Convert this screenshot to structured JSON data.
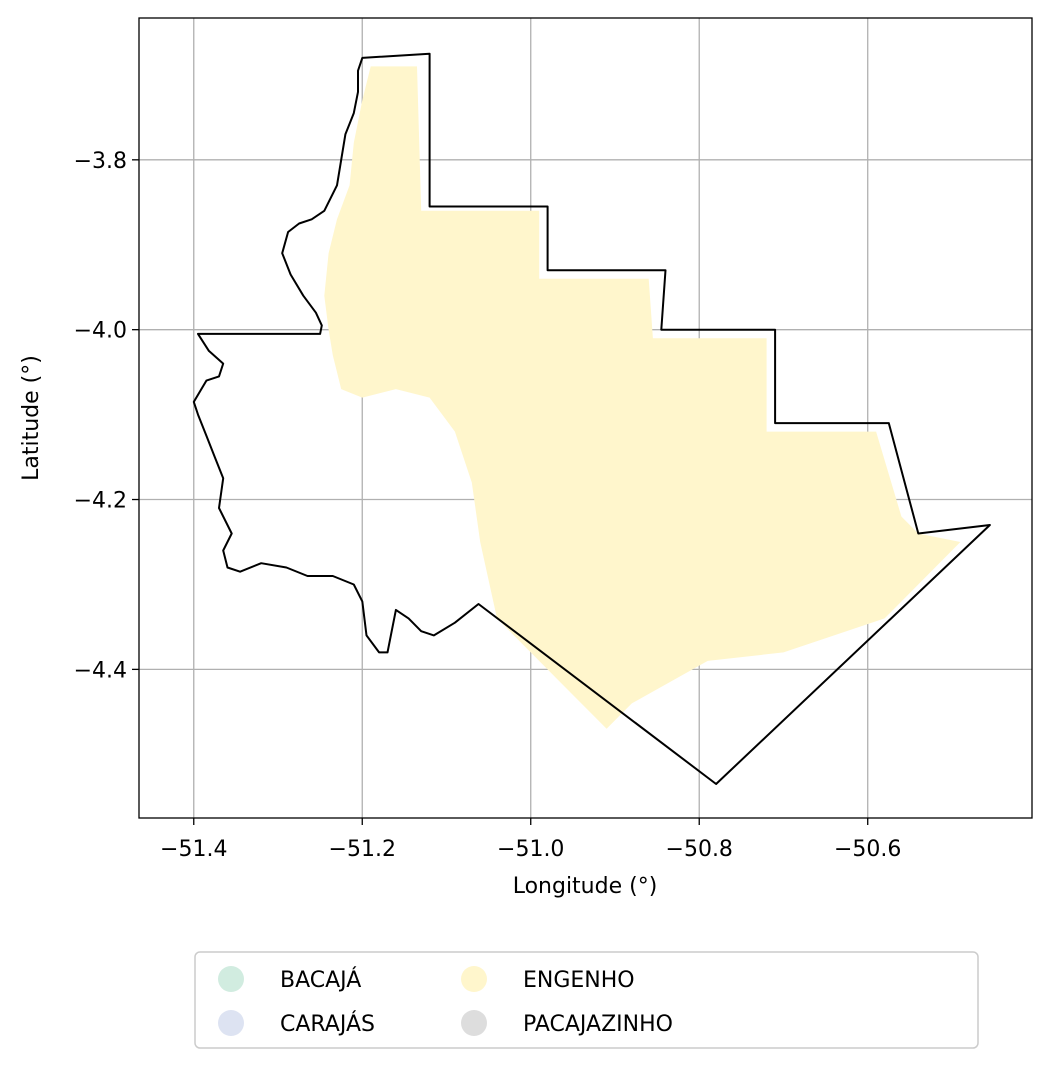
{
  "chart_data": {
    "type": "map",
    "xlabel": "Longitude (°)",
    "ylabel": "Latitude (°)",
    "xlim": [
      -51.465,
      -50.405
    ],
    "ylim": [
      -4.575,
      -3.633
    ],
    "grid": true,
    "x_ticks": [
      {
        "value": -51.4,
        "label": "−51.4"
      },
      {
        "value": -51.2,
        "label": "−51.2"
      },
      {
        "value": -51.0,
        "label": "−51.0"
      },
      {
        "value": -50.8,
        "label": "−50.8"
      },
      {
        "value": -50.6,
        "label": "−50.6"
      }
    ],
    "y_ticks": [
      {
        "value": -3.8,
        "label": "−3.8"
      },
      {
        "value": -4.0,
        "label": "−4.0"
      },
      {
        "value": -4.2,
        "label": "−4.2"
      },
      {
        "value": -4.4,
        "label": "−4.4"
      }
    ],
    "boundary": [
      [
        -51.2,
        -3.68
      ],
      [
        -51.12,
        -3.675
      ],
      [
        -51.12,
        -3.855
      ],
      [
        -50.98,
        -3.855
      ],
      [
        -50.98,
        -3.93
      ],
      [
        -50.84,
        -3.93
      ],
      [
        -50.845,
        -4.0
      ],
      [
        -50.71,
        -4.0
      ],
      [
        -50.71,
        -4.11
      ],
      [
        -50.575,
        -4.11
      ],
      [
        -50.54,
        -4.24
      ],
      [
        -50.455,
        -4.23
      ],
      [
        -50.78,
        -4.535
      ],
      [
        -51.062,
        -4.323
      ],
      [
        -51.09,
        -4.345
      ],
      [
        -51.115,
        -4.36
      ],
      [
        -51.13,
        -4.355
      ],
      [
        -51.145,
        -4.34
      ],
      [
        -51.16,
        -4.33
      ],
      [
        -51.17,
        -4.38
      ],
      [
        -51.18,
        -4.38
      ],
      [
        -51.195,
        -4.36
      ],
      [
        -51.2,
        -4.32
      ],
      [
        -51.21,
        -4.3
      ],
      [
        -51.235,
        -4.29
      ],
      [
        -51.265,
        -4.29
      ],
      [
        -51.29,
        -4.28
      ],
      [
        -51.32,
        -4.275
      ],
      [
        -51.345,
        -4.285
      ],
      [
        -51.36,
        -4.28
      ],
      [
        -51.365,
        -4.26
      ],
      [
        -51.355,
        -4.24
      ],
      [
        -51.37,
        -4.21
      ],
      [
        -51.365,
        -4.175
      ],
      [
        -51.375,
        -4.15
      ],
      [
        -51.385,
        -4.125
      ],
      [
        -51.395,
        -4.1
      ],
      [
        -51.4,
        -4.085
      ],
      [
        -51.385,
        -4.06
      ],
      [
        -51.37,
        -4.055
      ],
      [
        -51.365,
        -4.04
      ],
      [
        -51.382,
        -4.025
      ],
      [
        -51.395,
        -4.005
      ],
      [
        -51.25,
        -4.005
      ],
      [
        -51.248,
        -3.995
      ],
      [
        -51.255,
        -3.98
      ],
      [
        -51.27,
        -3.96
      ],
      [
        -51.285,
        -3.935
      ],
      [
        -51.295,
        -3.91
      ],
      [
        -51.288,
        -3.885
      ],
      [
        -51.275,
        -3.875
      ],
      [
        -51.26,
        -3.87
      ],
      [
        -51.245,
        -3.86
      ],
      [
        -51.23,
        -3.83
      ],
      [
        -51.225,
        -3.8
      ],
      [
        -51.22,
        -3.77
      ],
      [
        -51.21,
        -3.745
      ],
      [
        -51.205,
        -3.72
      ],
      [
        -51.205,
        -3.695
      ],
      [
        -51.2,
        -3.68
      ]
    ],
    "classes_present": [
      {
        "name": "ENGENHO",
        "color": "#fff6cc",
        "areas": [
          [
            [
              -51.19,
              -3.69
            ],
            [
              -51.135,
              -3.69
            ],
            [
              -51.13,
              -3.86
            ],
            [
              -50.99,
              -3.86
            ],
            [
              -50.99,
              -3.94
            ],
            [
              -50.86,
              -3.94
            ],
            [
              -50.855,
              -4.01
            ],
            [
              -50.72,
              -4.01
            ],
            [
              -50.72,
              -4.12
            ],
            [
              -50.59,
              -4.12
            ],
            [
              -50.56,
              -4.22
            ],
            [
              -50.54,
              -4.24
            ],
            [
              -50.49,
              -4.25
            ],
            [
              -50.58,
              -4.34
            ],
            [
              -50.7,
              -4.38
            ],
            [
              -50.79,
              -4.39
            ],
            [
              -50.88,
              -4.44
            ],
            [
              -50.91,
              -4.47
            ],
            [
              -50.96,
              -4.42
            ],
            [
              -51.0,
              -4.38
            ],
            [
              -51.04,
              -4.34
            ],
            [
              -51.06,
              -4.25
            ],
            [
              -51.07,
              -4.18
            ],
            [
              -51.09,
              -4.12
            ],
            [
              -51.12,
              -4.08
            ],
            [
              -51.16,
              -4.07
            ],
            [
              -51.2,
              -4.08
            ],
            [
              -51.225,
              -4.07
            ],
            [
              -51.235,
              -4.03
            ],
            [
              -51.24,
              -4.0
            ],
            [
              -51.245,
              -3.96
            ],
            [
              -51.24,
              -3.91
            ],
            [
              -51.23,
              -3.87
            ],
            [
              -51.215,
              -3.83
            ],
            [
              -51.21,
              -3.78
            ],
            [
              -51.2,
              -3.73
            ]
          ]
        ]
      }
    ],
    "legend": {
      "placement": "below",
      "entries": [
        {
          "label": "BACAJÁ",
          "color": "#d1ece0"
        },
        {
          "label": "CARAJÁS",
          "color": "#dde3f2"
        },
        {
          "label": "ENGENHO",
          "color": "#fff6cc"
        },
        {
          "label": "PACAJAZINHO",
          "color": "#dddddd"
        }
      ]
    }
  }
}
